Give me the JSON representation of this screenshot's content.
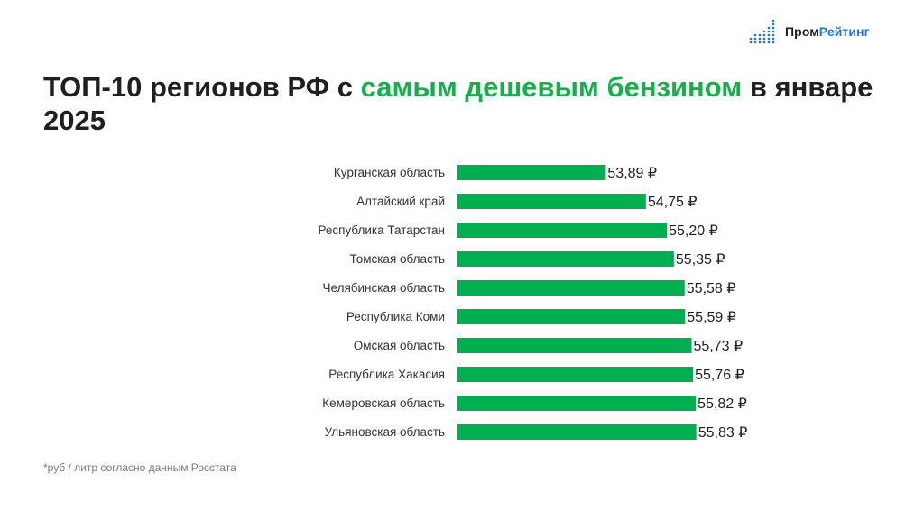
{
  "logo": {
    "part1": "Пром",
    "part2": "Рейтинг"
  },
  "title": {
    "part1": "ТОП-10 регионов РФ с ",
    "highlight": "самым дешевым бензином",
    "part2": " в январе 2025"
  },
  "footnote": "*руб / литр согласно данным Росстата",
  "colors": {
    "bar": "#00b050",
    "highlight": "#14b14b",
    "logo_blue": "#1a73e8"
  },
  "chart_data": {
    "type": "bar",
    "orientation": "horizontal",
    "categories": [
      "Курганская область",
      "Алтайский край",
      "Республика Татарстан",
      "Томская область",
      "Челябинская область",
      "Республика Коми",
      "Омская область",
      "Республика Хакасия",
      "Кемеровская область",
      "Ульяновская область"
    ],
    "values": [
      53.89,
      54.75,
      55.2,
      55.35,
      55.58,
      55.59,
      55.73,
      55.76,
      55.82,
      55.83
    ],
    "value_labels": [
      "53,89 ₽",
      "54,75 ₽",
      "55,20 ₽",
      "55,35 ₽",
      "55,58 ₽",
      "55,59 ₽",
      "55,73 ₽",
      "55,76 ₽",
      "55,82 ₽",
      "55,83 ₽"
    ],
    "axis_visible": false,
    "grid": false
  }
}
